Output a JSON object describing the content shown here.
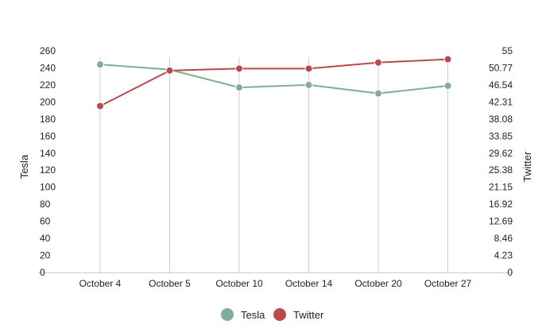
{
  "chart_data": {
    "type": "line",
    "categories": [
      "October 4",
      "October 5",
      "October 10",
      "October 14",
      "October 20",
      "October 27"
    ],
    "series": [
      {
        "name": "Tesla",
        "axis": "left",
        "color": "#7fae98",
        "values": [
          244,
          238,
          217,
          220,
          210,
          219
        ]
      },
      {
        "name": "Twitter",
        "axis": "right",
        "color": "#b94a4a",
        "values": [
          41.3,
          50.1,
          50.6,
          50.6,
          52.1,
          52.9
        ]
      }
    ],
    "ylabel": "Tesla",
    "y2label": "Twitter",
    "ylim": [
      0,
      260
    ],
    "y2lim": [
      0,
      55
    ],
    "yticks": [
      "0",
      "20",
      "40",
      "60",
      "80",
      "100",
      "120",
      "140",
      "160",
      "180",
      "200",
      "220",
      "240",
      "260"
    ],
    "y2ticks": [
      "0",
      "4.23",
      "8.46",
      "12.69",
      "16.92",
      "21.15",
      "25.38",
      "29.62",
      "33.85",
      "38.08",
      "42.31",
      "46.54",
      "50.77",
      "55"
    ],
    "grid": "vertical",
    "legend_position": "bottom-center"
  }
}
